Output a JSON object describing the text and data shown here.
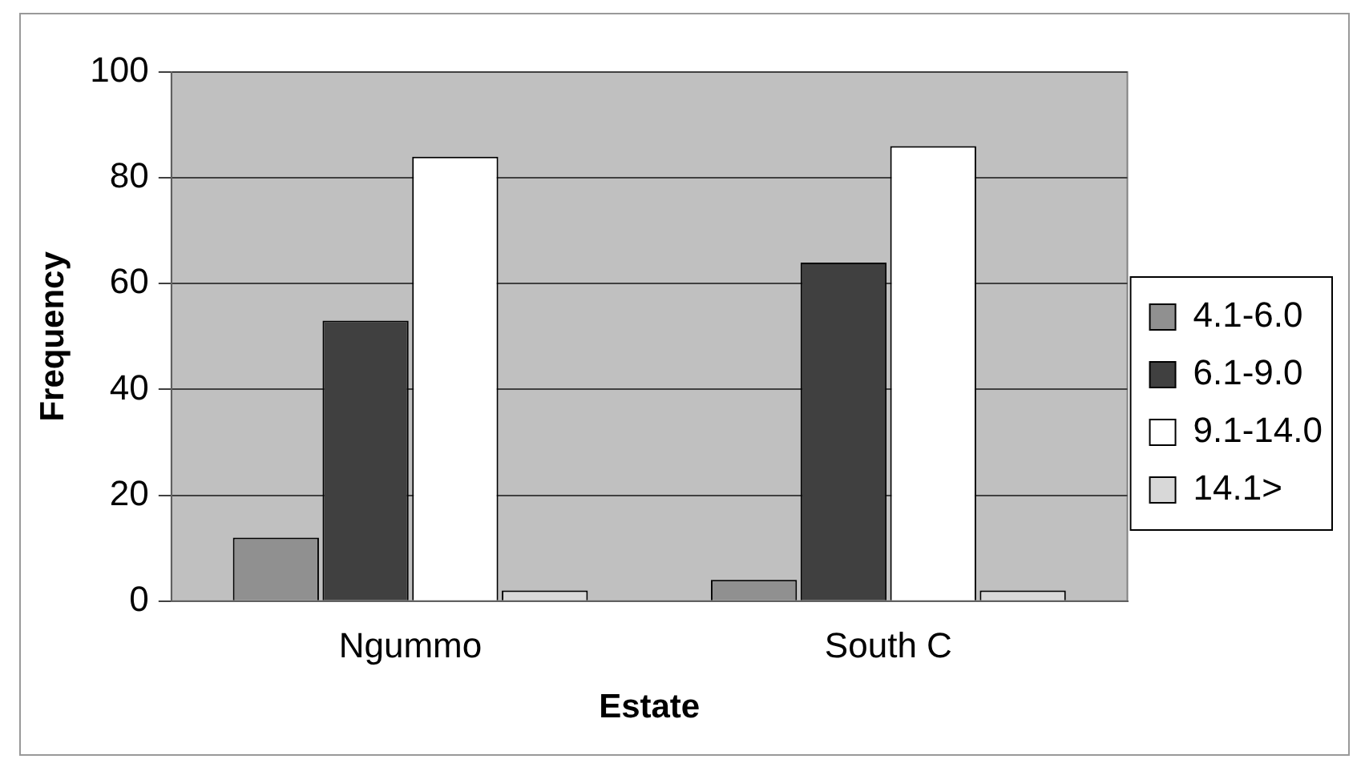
{
  "chart_data": {
    "type": "bar",
    "xlabel": "Estate",
    "ylabel": "Frequency",
    "categories": [
      "Ngummo",
      "South C"
    ],
    "series": [
      {
        "name": "4.1-6.0",
        "color": "#909090",
        "values": [
          12,
          4
        ]
      },
      {
        "name": "6.1-9.0",
        "color": "#404040",
        "values": [
          53,
          64
        ]
      },
      {
        "name": "9.1-14.0",
        "color": "#ffffff",
        "values": [
          84,
          86
        ]
      },
      {
        "name": "14.1>",
        "color": "#d8d8d8",
        "values": [
          2,
          2
        ]
      }
    ],
    "ylim": [
      0,
      100
    ],
    "yticks": [
      0,
      20,
      40,
      60,
      80,
      100
    ],
    "grid": "y",
    "legend": "right"
  }
}
